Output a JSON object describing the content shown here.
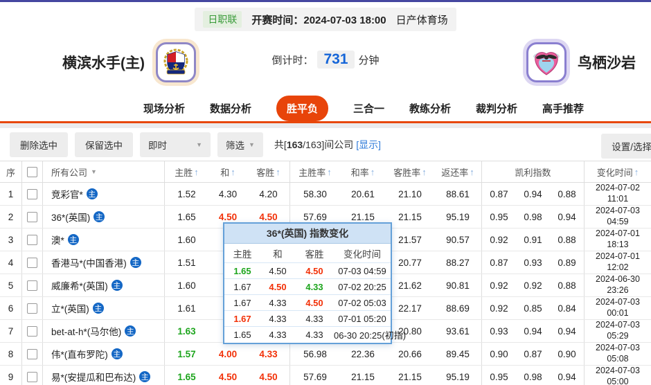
{
  "colors": {
    "top_line": "#4547a0",
    "accent_orange": "#e8440a",
    "link_blue": "#2f7bd9",
    "odds_red": "#f23007",
    "odds_green": "#1da51d",
    "company_badge_blue": "#1467c5",
    "popup_header_bg": "#cfe2f5",
    "popup_border": "#64a0d8"
  },
  "match_header": {
    "league": "日职联",
    "kickoff": "开赛时间：2024-07-03 18:00",
    "venue": "日产体育场",
    "home_team": "横滨水手(主)",
    "away_team": "鸟栖沙岩",
    "countdown_label": "倒计时：",
    "countdown_value": "731",
    "countdown_unit": "分钟"
  },
  "nav": {
    "tabs": [
      {
        "label": "现场分析",
        "active": false
      },
      {
        "label": "数据分析",
        "active": false
      },
      {
        "label": "胜平负",
        "active": true
      },
      {
        "label": "三合一",
        "active": false
      },
      {
        "label": "教练分析",
        "active": false
      },
      {
        "label": "裁判分析",
        "active": false
      },
      {
        "label": "高手推荐",
        "active": false
      }
    ]
  },
  "toolbar": {
    "delete_selected": "删除选中",
    "keep_selected": "保留选中",
    "time_mode": "即时",
    "filter": "筛选",
    "count_prefix": "共[",
    "count_bold": "163",
    "count_suffix": "/163]间公司",
    "show_link": "[显示]",
    "settings": "设置/选择"
  },
  "table": {
    "columns": [
      {
        "key": "idx",
        "label": "序",
        "sort": false,
        "filter": false
      },
      {
        "key": "check",
        "label": "",
        "sort": false,
        "filter": false
      },
      {
        "key": "company",
        "label": "所有公司",
        "sort": false,
        "filter": true
      },
      {
        "key": "home",
        "label": "主胜",
        "sort": true,
        "filter": false
      },
      {
        "key": "draw",
        "label": "和",
        "sort": true,
        "filter": false
      },
      {
        "key": "away",
        "label": "客胜",
        "sort": true,
        "filter": false
      },
      {
        "key": "home_rate",
        "label": "主胜率",
        "sort": true,
        "filter": false
      },
      {
        "key": "draw_rate",
        "label": "和率",
        "sort": true,
        "filter": false
      },
      {
        "key": "away_rate",
        "label": "客胜率",
        "sort": true,
        "filter": false
      },
      {
        "key": "return_rate",
        "label": "返还率",
        "sort": true,
        "filter": false
      },
      {
        "key": "kelly",
        "label": "凯利指数",
        "sort": false,
        "filter": false
      },
      {
        "key": "time",
        "label": "变化时间",
        "sort": true,
        "filter": false
      }
    ],
    "company_badge": "主",
    "rows": [
      {
        "idx": "1",
        "company": "竞彩官*",
        "home": {
          "v": "1.52",
          "c": ""
        },
        "draw": {
          "v": "4.30",
          "c": ""
        },
        "away": {
          "v": "4.20",
          "c": ""
        },
        "home_rate": "58.30",
        "draw_rate": "20.61",
        "away_rate": "21.10",
        "return_rate": "88.61",
        "kelly": [
          "0.87",
          "0.94",
          "0.88"
        ],
        "time": "2024-07-02 11:01"
      },
      {
        "idx": "2",
        "company": "36*(英国)",
        "home": {
          "v": "1.65",
          "c": ""
        },
        "draw": {
          "v": "4.50",
          "c": "red"
        },
        "away": {
          "v": "4.50",
          "c": "red"
        },
        "home_rate": "57.69",
        "draw_rate": "21.15",
        "away_rate": "21.15",
        "return_rate": "95.19",
        "kelly": [
          "0.95",
          "0.98",
          "0.94"
        ],
        "time": "2024-07-03 04:59"
      },
      {
        "idx": "3",
        "company": "澳*",
        "home": {
          "v": "1.60",
          "c": ""
        },
        "draw": {
          "v": "",
          "c": ""
        },
        "away": {
          "v": "",
          "c": ""
        },
        "home_rate": "",
        "draw_rate": "",
        "away_rate": "21.57",
        "return_rate": "90.57",
        "kelly": [
          "0.92",
          "0.91",
          "0.88"
        ],
        "time": "2024-07-01 18:13"
      },
      {
        "idx": "4",
        "company": "香港马*(中国香港)",
        "home": {
          "v": "1.51",
          "c": ""
        },
        "draw": {
          "v": "",
          "c": ""
        },
        "away": {
          "v": "",
          "c": ""
        },
        "home_rate": "",
        "draw_rate": "",
        "away_rate": "20.77",
        "return_rate": "88.27",
        "kelly": [
          "0.87",
          "0.93",
          "0.89"
        ],
        "time": "2024-07-01 12:02"
      },
      {
        "idx": "5",
        "company": "威廉希*(英国)",
        "home": {
          "v": "1.60",
          "c": ""
        },
        "draw": {
          "v": "",
          "c": ""
        },
        "away": {
          "v": "",
          "c": ""
        },
        "home_rate": "",
        "draw_rate": "",
        "away_rate": "21.62",
        "return_rate": "90.81",
        "kelly": [
          "0.92",
          "0.92",
          "0.88"
        ],
        "time": "2024-06-30 23:26"
      },
      {
        "idx": "6",
        "company": "立*(英国)",
        "home": {
          "v": "1.61",
          "c": ""
        },
        "draw": {
          "v": "",
          "c": ""
        },
        "away": {
          "v": "",
          "c": ""
        },
        "home_rate": "",
        "draw_rate": "",
        "away_rate": "22.17",
        "return_rate": "88.69",
        "kelly": [
          "0.92",
          "0.85",
          "0.84"
        ],
        "time": "2024-07-03 00:01"
      },
      {
        "idx": "7",
        "company": "bet-at-h*(马尔他)",
        "home": {
          "v": "1.63",
          "c": "green"
        },
        "draw": {
          "v": "",
          "c": ""
        },
        "away": {
          "v": "",
          "c": ""
        },
        "home_rate": "",
        "draw_rate": "",
        "away_rate": "20.80",
        "return_rate": "93.61",
        "kelly": [
          "0.93",
          "0.94",
          "0.94"
        ],
        "time": "2024-07-03 05:29"
      },
      {
        "idx": "8",
        "company": "伟*(直布罗陀)",
        "home": {
          "v": "1.57",
          "c": "green"
        },
        "draw": {
          "v": "4.00",
          "c": "red"
        },
        "away": {
          "v": "4.33",
          "c": "red"
        },
        "home_rate": "56.98",
        "draw_rate": "22.36",
        "away_rate": "20.66",
        "return_rate": "89.45",
        "kelly": [
          "0.90",
          "0.87",
          "0.90"
        ],
        "time": "2024-07-03 05:08"
      },
      {
        "idx": "9",
        "company": "易*(安提瓜和巴布达)",
        "home": {
          "v": "1.65",
          "c": "green"
        },
        "draw": {
          "v": "4.50",
          "c": "red"
        },
        "away": {
          "v": "4.50",
          "c": "red"
        },
        "home_rate": "57.69",
        "draw_rate": "21.15",
        "away_rate": "21.15",
        "return_rate": "95.19",
        "kelly": [
          "0.95",
          "0.98",
          "0.94"
        ],
        "time": "2024-07-03 05:00"
      }
    ]
  },
  "popup": {
    "title": "36*(英国) 指数变化",
    "columns": [
      "主胜",
      "和",
      "客胜",
      "变化时间"
    ],
    "rows": [
      [
        {
          "v": "1.65",
          "c": "green"
        },
        {
          "v": "4.50",
          "c": ""
        },
        {
          "v": "4.50",
          "c": "red"
        },
        {
          "v": "07-03 04:59",
          "c": ""
        }
      ],
      [
        {
          "v": "1.67",
          "c": ""
        },
        {
          "v": "4.50",
          "c": "red"
        },
        {
          "v": "4.33",
          "c": "green"
        },
        {
          "v": "07-02 20:25",
          "c": ""
        }
      ],
      [
        {
          "v": "1.67",
          "c": ""
        },
        {
          "v": "4.33",
          "c": ""
        },
        {
          "v": "4.50",
          "c": "red"
        },
        {
          "v": "07-02 05:03",
          "c": ""
        }
      ],
      [
        {
          "v": "1.67",
          "c": "red"
        },
        {
          "v": "4.33",
          "c": ""
        },
        {
          "v": "4.33",
          "c": ""
        },
        {
          "v": "07-01 05:20",
          "c": ""
        }
      ],
      [
        {
          "v": "1.65",
          "c": ""
        },
        {
          "v": "4.33",
          "c": ""
        },
        {
          "v": "4.33",
          "c": ""
        },
        {
          "v": "06-30 20:25(初指)",
          "c": ""
        }
      ]
    ]
  }
}
